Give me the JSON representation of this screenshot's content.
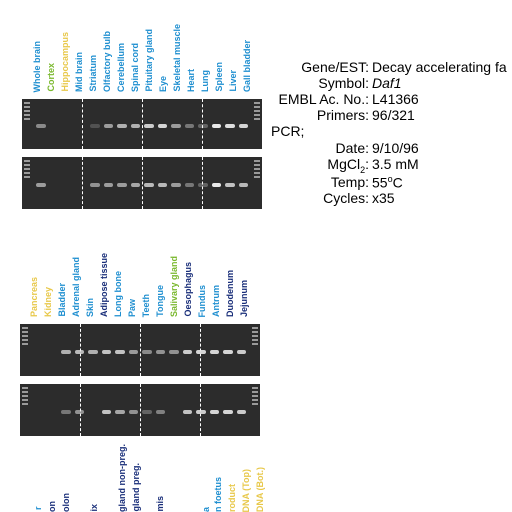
{
  "section1": {
    "lanes": [
      {
        "name": "Whole brain",
        "color": "#1f8fd0"
      },
      {
        "name": "Cortex",
        "color": "#7ab82e"
      },
      {
        "name": "Hippocampus",
        "color": "#e8c84a"
      },
      {
        "name": "Mid brain",
        "color": "#1f8fd0"
      },
      {
        "name": "Striatum",
        "color": "#1f8fd0"
      },
      {
        "name": "Olfactory bulb",
        "color": "#1f8fd0"
      },
      {
        "name": "Cerebellum",
        "color": "#1f8fd0"
      },
      {
        "name": "Spinal cord",
        "color": "#1f8fd0"
      },
      {
        "name": "Pituitary gland",
        "color": "#1f8fd0"
      },
      {
        "name": "Eye",
        "color": "#1f8fd0"
      },
      {
        "name": "Skeletal muscle",
        "color": "#1f8fd0"
      },
      {
        "name": "Heart",
        "color": "#1f8fd0"
      },
      {
        "name": "Lung",
        "color": "#1f8fd0"
      },
      {
        "name": "Spleen",
        "color": "#1f8fd0"
      },
      {
        "name": "Liver",
        "color": "#1f8fd0"
      },
      {
        "name": "Gall bladder",
        "color": "#1f8fd0"
      }
    ]
  },
  "section2": {
    "lanes": [
      {
        "name": "Pancreas",
        "color": "#e8c84a"
      },
      {
        "name": "Kidney",
        "color": "#e8c84a"
      },
      {
        "name": "Bladder",
        "color": "#1f8fd0"
      },
      {
        "name": "Adrenal gland",
        "color": "#1f8fd0"
      },
      {
        "name": "Skin",
        "color": "#1f8fd0"
      },
      {
        "name": "Adipose tissue",
        "color": "#1a2f7a"
      },
      {
        "name": "Long bone",
        "color": "#1f8fd0"
      },
      {
        "name": "Paw",
        "color": "#1f8fd0"
      },
      {
        "name": "Teeth",
        "color": "#1f8fd0"
      },
      {
        "name": "Tongue",
        "color": "#1f8fd0"
      },
      {
        "name": "Salivary gland",
        "color": "#7ab82e"
      },
      {
        "name": "Oesophagus",
        "color": "#1a2f7a"
      },
      {
        "name": "Fundus",
        "color": "#1f8fd0"
      },
      {
        "name": "Antrum",
        "color": "#1f8fd0"
      },
      {
        "name": "Duodenum",
        "color": "#1a2f7a"
      },
      {
        "name": "Jejunum",
        "color": "#1a2f7a"
      }
    ]
  },
  "section3": {
    "lanes": [
      {
        "name": "r",
        "color": "#1f8fd0"
      },
      {
        "name": "on",
        "color": "#1a2f7a"
      },
      {
        "name": "olon",
        "color": "#1a2f7a"
      },
      {
        "name": "ix",
        "color": "#1a2f7a"
      },
      {
        "name": "",
        "color": "#1a2f7a"
      },
      {
        "name": "gland non-preg.",
        "color": "#1a2f7a"
      },
      {
        "name": "gland preg.",
        "color": "#1a2f7a"
      },
      {
        "name": "",
        "color": "#1a2f7a"
      },
      {
        "name": "mis",
        "color": "#1a2f7a"
      },
      {
        "name": "",
        "color": "#1a2f7a"
      },
      {
        "name": "a",
        "color": "#1f8fd0"
      },
      {
        "name": "n foetus",
        "color": "#1f8fd0"
      },
      {
        "name": "roduct",
        "color": "#e8c84a"
      },
      {
        "name": "DNA (Top)",
        "color": "#e8c84a"
      },
      {
        "name": "DNA (Bot.)",
        "color": "#e8c84a"
      }
    ]
  },
  "info": {
    "gene_key": "Gene/EST:",
    "gene_val": "Decay accelerating fa",
    "symbol_key": "Symbol:",
    "symbol_val": "Daf1",
    "embl_key": "EMBL Ac. No.:",
    "embl_val": "L41366",
    "primers_key": "Primers:",
    "primers_val": "96/321",
    "pcr_label": "PCR;",
    "date_key": "Date:",
    "date_val": "9/10/96",
    "mgcl_key_main": "MgCl",
    "mgcl_key_sub": "2",
    "mgcl_key_end": ":",
    "mgcl_val": "3.5 mM",
    "temp_key": "Temp:",
    "temp_val_main": "55",
    "temp_val_sup": "o",
    "temp_val_end": "C",
    "cycles_key": "Cycles:",
    "cycles_val": "x35"
  },
  "gels": {
    "gel1a": [
      0.5,
      0,
      0,
      0,
      0.2,
      0.6,
      0.7,
      0.7,
      0.85,
      0.9,
      0.6,
      0.4,
      0.3,
      1,
      0.95,
      0.9
    ],
    "gel1b": [
      0.6,
      0,
      0,
      0,
      0.55,
      0.6,
      0.6,
      0.65,
      0.75,
      0.75,
      0.6,
      0.4,
      0.3,
      1,
      0.8,
      0.75
    ],
    "gel2a": [
      0,
      0,
      0.7,
      0.75,
      0.7,
      0.8,
      0.8,
      0.6,
      0.5,
      0.55,
      0.55,
      0.85,
      0.9,
      0.9,
      0.9,
      0.85
    ],
    "gel2b": [
      0,
      0,
      0.4,
      0.55,
      0,
      0.8,
      0.65,
      0.55,
      0.3,
      0.45,
      0,
      0.8,
      0.85,
      0.9,
      0.9,
      0.85
    ]
  }
}
